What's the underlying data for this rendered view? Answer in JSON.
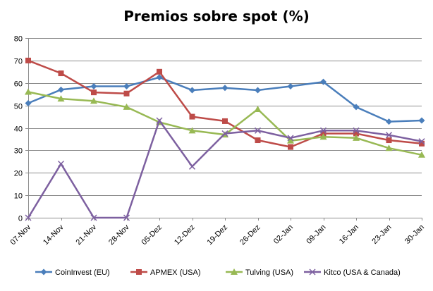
{
  "chart_data": {
    "type": "line",
    "title": "Premios sobre spot (%)",
    "xlabel": "",
    "ylabel": "",
    "ylim": [
      0,
      80
    ],
    "yticks": [
      0,
      10,
      20,
      30,
      40,
      50,
      60,
      70,
      80
    ],
    "grid": "horizontal",
    "legend_position": "bottom",
    "categories": [
      "07-Nov",
      "14-Nov",
      "21-Nov",
      "28-Nov",
      "05-Dez",
      "12-Dez",
      "19-Dez",
      "26-Dez",
      "02-Jan",
      "09-Jan",
      "16-Jan",
      "23-Jan",
      "30-Jan"
    ],
    "series": [
      {
        "name": "CoinInvest (EU)",
        "color": "#4a7ebb",
        "marker": "diamond",
        "values": [
          51,
          57,
          58.5,
          58.5,
          62.5,
          56.8,
          57.8,
          56.8,
          58.5,
          60.5,
          49.3,
          42.8,
          43.3
        ]
      },
      {
        "name": "APMEX (USA)",
        "color": "#be4b48",
        "marker": "square",
        "values": [
          70,
          64.3,
          55.8,
          55.3,
          65,
          45,
          43,
          34.5,
          31.5,
          37.5,
          37.5,
          34.5,
          33
        ]
      },
      {
        "name": "Tulving (USA)",
        "color": "#98b954",
        "marker": "triangle",
        "values": [
          56,
          53,
          52,
          49.3,
          42.5,
          38.8,
          37,
          48.3,
          34.3,
          36,
          35.5,
          31,
          28
        ]
      },
      {
        "name": "Kitco (USA  & Canada)",
        "color": "#7d60a0",
        "marker": "x",
        "values": [
          0,
          24,
          0,
          0,
          43.3,
          22.8,
          37.5,
          38.8,
          35.5,
          38.8,
          38.8,
          36.8,
          34
        ]
      }
    ]
  }
}
